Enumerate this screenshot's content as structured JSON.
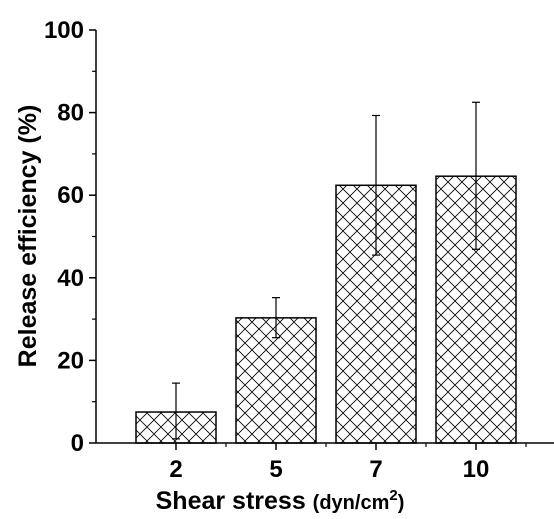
{
  "chart_data": {
    "type": "bar",
    "categories": [
      "2",
      "5",
      "7",
      "10"
    ],
    "values": [
      7.5,
      30.3,
      62.4,
      64.6
    ],
    "error_low": [
      1.0,
      25.5,
      45.5,
      46.9
    ],
    "error_high": [
      14.5,
      35.2,
      79.3,
      82.5
    ],
    "ylim": [
      0,
      100
    ],
    "yticks": [
      "0",
      "20",
      "40",
      "60",
      "80",
      "100"
    ],
    "ylabel": "Release efficiency (%)",
    "xlabel": {
      "main": "Shear stress ",
      "unit_open": "(dyn/cm",
      "unit_sup": "2",
      "unit_close": ")"
    },
    "pattern": "cross-hatch",
    "bar_stroke": "#000000",
    "bar_fill": "#ffffff",
    "grid": false,
    "legend": "none"
  }
}
